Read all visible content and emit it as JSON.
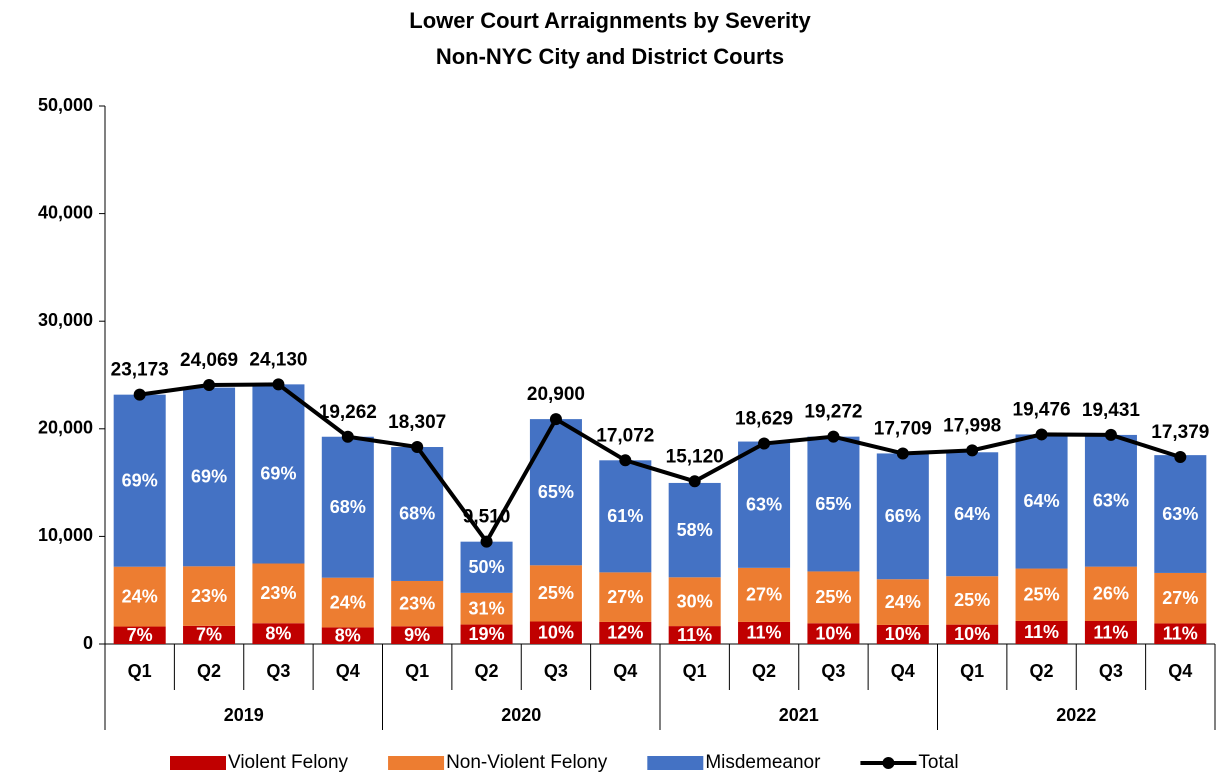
{
  "chart_data": {
    "type": "stacked-bar-line",
    "title": [
      "Lower Court Arraignments by Severity",
      "Non-NYC City and District Courts"
    ],
    "categories": [
      "Q1",
      "Q2",
      "Q3",
      "Q4",
      "Q1",
      "Q2",
      "Q3",
      "Q4",
      "Q1",
      "Q2",
      "Q3",
      "Q4",
      "Q1",
      "Q2",
      "Q3",
      "Q4"
    ],
    "groups": [
      "2019",
      "2020",
      "2021",
      "2022"
    ],
    "series": [
      {
        "name": "Violent Felony",
        "color": "#c00000",
        "kind": "bar",
        "values": [
          7,
          7,
          8,
          8,
          9,
          19,
          10,
          12,
          11,
          11,
          10,
          10,
          10,
          11,
          11,
          11
        ],
        "value_labels": [
          "7%",
          "7%",
          "8%",
          "8%",
          "9%",
          "19%",
          "10%",
          "12%",
          "11%",
          "11%",
          "10%",
          "10%",
          "10%",
          "11%",
          "11%",
          "11%"
        ]
      },
      {
        "name": "Non-Violent Felony",
        "color": "#ed7d31",
        "kind": "bar",
        "values": [
          24,
          23,
          23,
          24,
          23,
          31,
          25,
          27,
          30,
          27,
          25,
          24,
          25,
          25,
          26,
          27
        ],
        "value_labels": [
          "24%",
          "23%",
          "23%",
          "24%",
          "23%",
          "31%",
          "25%",
          "27%",
          "30%",
          "27%",
          "25%",
          "24%",
          "25%",
          "25%",
          "26%",
          "27%"
        ]
      },
      {
        "name": "Misdemeanor",
        "color": "#4472c4",
        "kind": "bar",
        "values": [
          69,
          69,
          69,
          68,
          68,
          50,
          65,
          61,
          58,
          63,
          65,
          66,
          64,
          64,
          63,
          63
        ],
        "value_labels": [
          "69%",
          "69%",
          "69%",
          "68%",
          "68%",
          "50%",
          "65%",
          "61%",
          "58%",
          "63%",
          "65%",
          "66%",
          "64%",
          "64%",
          "63%",
          "63%"
        ]
      },
      {
        "name": "Total",
        "color": "#000000",
        "kind": "line",
        "values": [
          23173,
          24069,
          24130,
          19262,
          18307,
          9510,
          20900,
          17072,
          15120,
          18629,
          19272,
          17709,
          17998,
          19476,
          19431,
          17379
        ],
        "value_labels": [
          "23,173",
          "24,069",
          "24,130",
          "19,262",
          "18,307",
          "9,510",
          "20,900",
          "17,072",
          "15,120",
          "18,629",
          "19,272",
          "17,709",
          "17,998",
          "19,476",
          "19,431",
          "17,379"
        ]
      }
    ],
    "ylim": [
      0,
      50000
    ],
    "yticks": [
      0,
      {
        "value": 10000,
        "label": "10,000"
      },
      {
        "value": 20000,
        "label": "20,000"
      },
      {
        "value": 30000,
        "label": "30,000"
      },
      {
        "value": 40000,
        "label": "40,000"
      },
      {
        "value": 50000,
        "label": "50,000"
      }
    ],
    "grid": false,
    "legend": "bottom"
  }
}
